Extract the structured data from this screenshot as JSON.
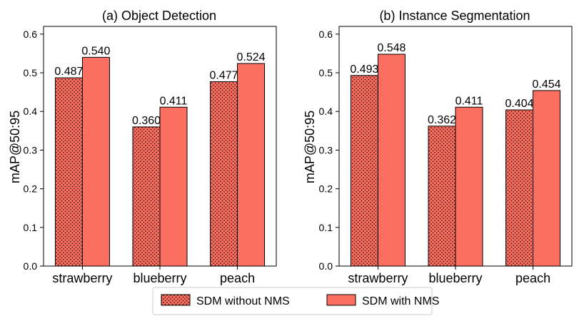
{
  "colors": {
    "bar_fill": "#fb6f61",
    "bar_edge": "#000000",
    "dot": "#2a0b08"
  },
  "legend": {
    "position": "bottom-center",
    "items": [
      {
        "label": "SDM without NMS",
        "pattern": "dots"
      },
      {
        "label": "SDM with NMS",
        "pattern": "solid"
      }
    ]
  },
  "chart_data": [
    {
      "type": "bar",
      "title": "(a) Object Detection",
      "ylabel": "mAP@50:95",
      "xlabel": "",
      "categories": [
        "strawberry",
        "blueberry",
        "peach"
      ],
      "ylim": [
        0,
        0.62
      ],
      "yticks": [
        "0.0",
        "0.1",
        "0.2",
        "0.3",
        "0.4",
        "0.5",
        "0.6"
      ],
      "grid": false,
      "series": [
        {
          "name": "SDM without NMS",
          "values": [
            0.487,
            0.36,
            0.477
          ],
          "labels": [
            "0.487",
            "0.360",
            "0.477"
          ]
        },
        {
          "name": "SDM with NMS",
          "values": [
            0.54,
            0.411,
            0.524
          ],
          "labels": [
            "0.540",
            "0.411",
            "0.524"
          ]
        }
      ]
    },
    {
      "type": "bar",
      "title": "(b) Instance Segmentation",
      "ylabel": "mAP@50:95",
      "xlabel": "",
      "categories": [
        "strawberry",
        "blueberry",
        "peach"
      ],
      "ylim": [
        0,
        0.62
      ],
      "yticks": [
        "0.0",
        "0.1",
        "0.2",
        "0.3",
        "0.4",
        "0.5",
        "0.6"
      ],
      "grid": false,
      "series": [
        {
          "name": "SDM without NMS",
          "values": [
            0.493,
            0.362,
            0.404
          ],
          "labels": [
            "0.493",
            "0.362",
            "0.404"
          ]
        },
        {
          "name": "SDM with NMS",
          "values": [
            0.548,
            0.411,
            0.454
          ],
          "labels": [
            "0.548",
            "0.411",
            "0.454"
          ]
        }
      ]
    }
  ]
}
